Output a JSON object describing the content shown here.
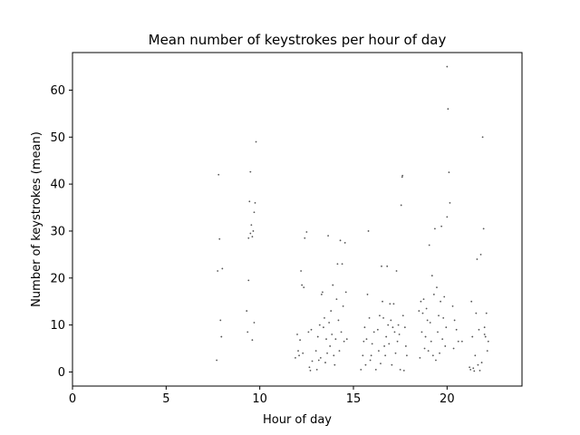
{
  "chart_data": {
    "type": "scatter",
    "title": "Mean number of keystrokes per hour of day",
    "xlabel": "Hour of day",
    "ylabel": "Number of keystrokes (mean)",
    "xlim": [
      0,
      24
    ],
    "ylim": [
      -3,
      68
    ],
    "xticks": [
      0,
      5,
      10,
      15,
      20
    ],
    "yticks": [
      0,
      10,
      20,
      30,
      40,
      50,
      60
    ],
    "grid": false,
    "marker_color": "#555555",
    "series": [
      {
        "points": [
          [
            7.7,
            2.5
          ],
          [
            7.75,
            21.5
          ],
          [
            7.8,
            42.0
          ],
          [
            7.85,
            28.3
          ],
          [
            7.9,
            11.0
          ],
          [
            7.95,
            7.5
          ],
          [
            8.0,
            22.0
          ],
          [
            9.3,
            13.0
          ],
          [
            9.35,
            8.5
          ],
          [
            9.4,
            28.5
          ],
          [
            9.45,
            36.3
          ],
          [
            9.5,
            42.6
          ],
          [
            9.4,
            19.5
          ],
          [
            9.55,
            31.3
          ],
          [
            9.6,
            28.8
          ],
          [
            9.65,
            30.0
          ],
          [
            9.7,
            34.0
          ],
          [
            9.5,
            29.5
          ],
          [
            9.6,
            6.8
          ],
          [
            9.7,
            10.5
          ],
          [
            9.75,
            36.0
          ],
          [
            9.8,
            49.0
          ],
          [
            11.9,
            3.0
          ],
          [
            12.0,
            8.0
          ],
          [
            12.05,
            4.5
          ],
          [
            12.1,
            3.5
          ],
          [
            12.15,
            6.8
          ],
          [
            12.2,
            21.5
          ],
          [
            12.25,
            18.5
          ],
          [
            12.3,
            4.0
          ],
          [
            12.35,
            18.0
          ],
          [
            12.4,
            28.5
          ],
          [
            12.5,
            29.8
          ],
          [
            12.6,
            8.5
          ],
          [
            12.65,
            1.0
          ],
          [
            12.7,
            0.3
          ],
          [
            12.75,
            9.0
          ],
          [
            12.8,
            2.3
          ],
          [
            13.0,
            4.5
          ],
          [
            13.05,
            0.5
          ],
          [
            13.1,
            7.5
          ],
          [
            13.15,
            2.5
          ],
          [
            13.2,
            10.0
          ],
          [
            13.25,
            3.0
          ],
          [
            13.3,
            16.5
          ],
          [
            13.35,
            17.0
          ],
          [
            13.4,
            9.5
          ],
          [
            13.45,
            11.5
          ],
          [
            13.5,
            2.0
          ],
          [
            13.55,
            7.0
          ],
          [
            13.6,
            4.0
          ],
          [
            13.65,
            29.0
          ],
          [
            13.7,
            10.5
          ],
          [
            13.75,
            5.5
          ],
          [
            13.8,
            13.0
          ],
          [
            13.85,
            8.0
          ],
          [
            13.9,
            18.5
          ],
          [
            13.95,
            3.5
          ],
          [
            14.0,
            1.5
          ],
          [
            14.05,
            7.0
          ],
          [
            14.1,
            15.5
          ],
          [
            14.15,
            23.0
          ],
          [
            14.2,
            11.0
          ],
          [
            14.25,
            4.5
          ],
          [
            14.3,
            28.0
          ],
          [
            14.35,
            8.5
          ],
          [
            14.4,
            23.0
          ],
          [
            14.45,
            14.0
          ],
          [
            14.5,
            6.5
          ],
          [
            14.55,
            27.5
          ],
          [
            14.6,
            17.0
          ],
          [
            14.65,
            7.0
          ],
          [
            15.4,
            0.5
          ],
          [
            15.5,
            3.5
          ],
          [
            15.55,
            6.5
          ],
          [
            15.6,
            9.5
          ],
          [
            15.65,
            1.5
          ],
          [
            15.7,
            7.0
          ],
          [
            15.75,
            16.5
          ],
          [
            15.8,
            30.0
          ],
          [
            15.85,
            11.5
          ],
          [
            15.9,
            2.5
          ],
          [
            15.95,
            3.5
          ],
          [
            16.0,
            6.0
          ],
          [
            16.1,
            8.5
          ],
          [
            16.2,
            0.5
          ],
          [
            16.3,
            9.0
          ],
          [
            16.35,
            4.5
          ],
          [
            16.4,
            12.0
          ],
          [
            16.45,
            1.8
          ],
          [
            16.5,
            22.5
          ],
          [
            16.55,
            15.0
          ],
          [
            16.6,
            11.5
          ],
          [
            16.65,
            5.5
          ],
          [
            16.7,
            3.5
          ],
          [
            16.75,
            7.5
          ],
          [
            16.8,
            22.5
          ],
          [
            16.85,
            10.0
          ],
          [
            16.9,
            6.0
          ],
          [
            16.95,
            14.5
          ],
          [
            17.0,
            11.0
          ],
          [
            17.05,
            1.5
          ],
          [
            17.1,
            9.5
          ],
          [
            17.15,
            14.5
          ],
          [
            17.2,
            8.5
          ],
          [
            17.25,
            4.0
          ],
          [
            17.3,
            21.5
          ],
          [
            17.35,
            6.5
          ],
          [
            17.4,
            10.0
          ],
          [
            17.45,
            8.0
          ],
          [
            17.5,
            0.5
          ],
          [
            17.55,
            35.5
          ],
          [
            17.6,
            41.5
          ],
          [
            17.62,
            41.8
          ],
          [
            17.65,
            12.0
          ],
          [
            17.7,
            0.3
          ],
          [
            17.75,
            9.5
          ],
          [
            17.8,
            5.5
          ],
          [
            17.85,
            3.5
          ],
          [
            18.5,
            13.0
          ],
          [
            18.55,
            3.0
          ],
          [
            18.6,
            15.0
          ],
          [
            18.65,
            8.5
          ],
          [
            18.7,
            12.5
          ],
          [
            18.75,
            15.5
          ],
          [
            18.8,
            5.0
          ],
          [
            18.85,
            7.5
          ],
          [
            18.9,
            13.5
          ],
          [
            18.95,
            11.0
          ],
          [
            19.0,
            4.5
          ],
          [
            19.05,
            27.0
          ],
          [
            19.1,
            10.5
          ],
          [
            19.15,
            6.5
          ],
          [
            19.2,
            20.5
          ],
          [
            19.25,
            3.5
          ],
          [
            19.3,
            16.5
          ],
          [
            19.35,
            30.5
          ],
          [
            19.4,
            2.5
          ],
          [
            19.45,
            18.0
          ],
          [
            19.5,
            8.5
          ],
          [
            19.55,
            12.0
          ],
          [
            19.6,
            4.0
          ],
          [
            19.65,
            15.0
          ],
          [
            19.7,
            31.0
          ],
          [
            19.75,
            7.0
          ],
          [
            19.8,
            11.5
          ],
          [
            19.85,
            16.0
          ],
          [
            19.9,
            5.5
          ],
          [
            19.95,
            9.5
          ],
          [
            20.0,
            65.0
          ],
          [
            20.05,
            56.0
          ],
          [
            20.1,
            42.5
          ],
          [
            20.15,
            36.0
          ],
          [
            20.0,
            33.0
          ],
          [
            20.3,
            14.0
          ],
          [
            20.35,
            5.0
          ],
          [
            20.4,
            11.0
          ],
          [
            20.5,
            9.0
          ],
          [
            20.6,
            6.5
          ],
          [
            20.8,
            6.5
          ],
          [
            21.2,
            1.0
          ],
          [
            21.25,
            0.5
          ],
          [
            21.3,
            15.0
          ],
          [
            21.35,
            7.5
          ],
          [
            21.4,
            0.8
          ],
          [
            21.45,
            0.2
          ],
          [
            21.5,
            3.5
          ],
          [
            21.55,
            12.5
          ],
          [
            21.6,
            24.0
          ],
          [
            21.65,
            1.5
          ],
          [
            21.7,
            9.0
          ],
          [
            21.75,
            0.3
          ],
          [
            21.8,
            25.0
          ],
          [
            21.85,
            2.0
          ],
          [
            21.9,
            50.0
          ],
          [
            21.95,
            30.5
          ],
          [
            22.0,
            9.5
          ],
          [
            22.05,
            7.5
          ],
          [
            22.1,
            12.5
          ],
          [
            22.15,
            4.5
          ],
          [
            22.2,
            6.5
          ],
          [
            22.0,
            8.0
          ]
        ]
      }
    ]
  }
}
